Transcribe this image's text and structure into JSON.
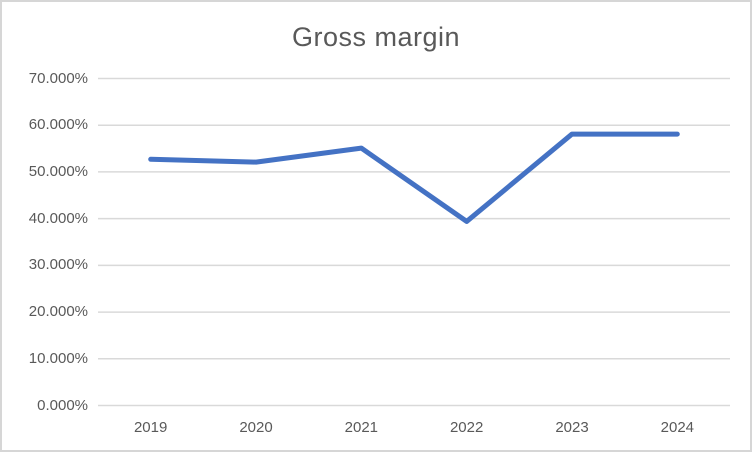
{
  "window": {
    "background": "#ffffff",
    "border_color": "#d6d6d6"
  },
  "chart_data": {
    "type": "line",
    "title": "Gross margin",
    "categories": [
      "2019",
      "2020",
      "2021",
      "2022",
      "2023",
      "2024"
    ],
    "series": [
      {
        "name": "Gross margin",
        "values": [
          52.7,
          52.1,
          55.1,
          39.4,
          58.1,
          58.1
        ]
      }
    ],
    "unit": "%",
    "xlabel": "",
    "ylabel": "",
    "ylim": [
      0,
      70
    ],
    "ytick_step": 10,
    "ytick_labels": [
      "0.000%",
      "10.000%",
      "20.000%",
      "30.000%",
      "40.000%",
      "50.000%",
      "60.000%",
      "70.000%"
    ],
    "grid": true,
    "legend_position": "none",
    "line_color": "#4472C4",
    "gridline_color": "#d9d9d9",
    "text_color": "#595959"
  }
}
